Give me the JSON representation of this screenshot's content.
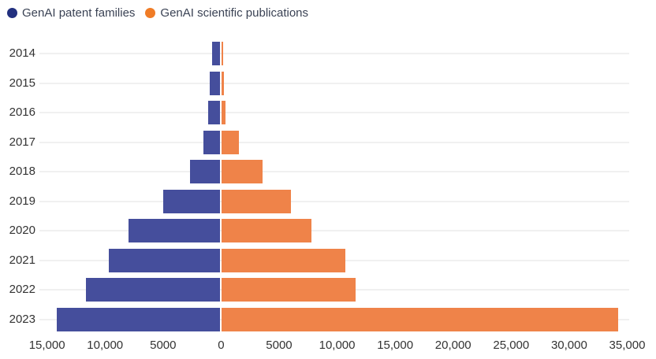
{
  "colors": {
    "patent_bar": "#454e9c",
    "publication_bar": "#ef8349",
    "patent_legend_dot": "#22307f",
    "publication_legend_dot": "#f07c26",
    "grid_line": "#f0f0f0",
    "axis_text": "#333333",
    "legend_text": "#3a4254"
  },
  "legend": {
    "items": [
      {
        "label": "GenAI patent families"
      },
      {
        "label": "GenAI scientific publications"
      }
    ]
  },
  "chart_data": {
    "type": "bar",
    "variant": "horizontal-diverging",
    "title": "",
    "categories": [
      "2014",
      "2015",
      "2016",
      "2017",
      "2018",
      "2019",
      "2020",
      "2021",
      "2022",
      "2023"
    ],
    "series": [
      {
        "name": "GenAI patent families",
        "direction": "left",
        "color": "#454e9c",
        "values": [
          733,
          880,
          1020,
          1430,
          2630,
          4940,
          7890,
          9610,
          11600,
          14080
        ]
      },
      {
        "name": "GenAI scientific publications",
        "direction": "right",
        "color": "#ef8349",
        "values": [
          116,
          205,
          340,
          1450,
          3530,
          5930,
          7720,
          10620,
          11520,
          34180
        ]
      }
    ],
    "x_axis": {
      "tick_values": [
        -15000,
        -10000,
        -5000,
        0,
        5000,
        10000,
        15000,
        20000,
        25000,
        30000,
        35000
      ],
      "tick_labels": [
        "15,000",
        "10,000",
        "5000",
        "0",
        "5000",
        "10,000",
        "15,000",
        "20,000",
        "25,000",
        "30,000",
        "35,000"
      ],
      "min": -16000,
      "max": 36500
    },
    "grid": "horizontal category lines only",
    "legend_position": "top-left"
  }
}
